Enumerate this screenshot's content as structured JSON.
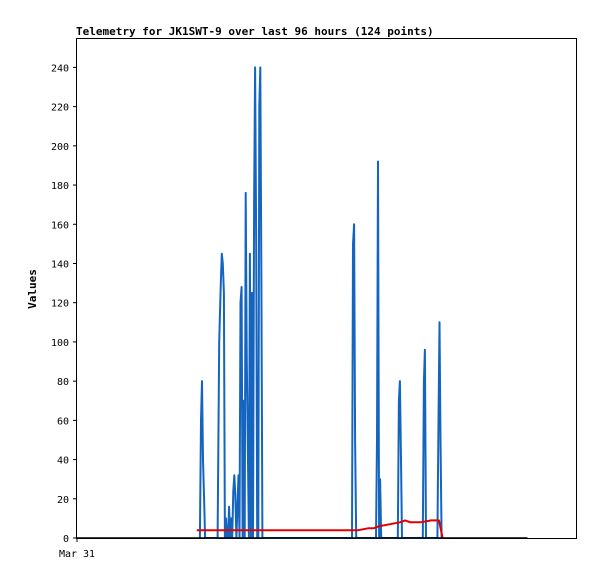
{
  "chart_data": {
    "type": "line",
    "title": "Telemetry for JK1SWT-9 over last 96 hours (124 points)",
    "xlabel": "",
    "ylabel": "Values",
    "ylim": [
      0,
      255
    ],
    "xlim": [
      0,
      96
    ],
    "y_ticks": [
      0,
      20,
      40,
      60,
      80,
      100,
      120,
      140,
      160,
      180,
      200,
      220,
      240
    ],
    "x_ticks": [
      {
        "x": 0,
        "label": "Mar 31"
      }
    ],
    "grid": false,
    "legend": "none",
    "series": [
      {
        "color": "#1565c0",
        "x": [
          23.6,
          23.8,
          24.0,
          24.2,
          24.4,
          24.6,
          24.8,
          25.0,
          27.0,
          27.3,
          27.6,
          27.8,
          28.0,
          28.2,
          28.4,
          28.6,
          28.8,
          29.0,
          29.2,
          29.4,
          29.6,
          29.8,
          30.0,
          30.2,
          30.4,
          30.6,
          31.0,
          31.2,
          31.4,
          31.6,
          31.8,
          32.0,
          32.2,
          32.4,
          32.6,
          33.0,
          33.2,
          33.4,
          33.6,
          33.8,
          34.0,
          34.2,
          34.4,
          34.6,
          34.8,
          35.0,
          35.2,
          35.4,
          35.6,
          35.8,
          36.0,
          36.2,
          36.4,
          36.6,
          36.8,
          37.0,
          37.2,
          37.4,
          37.6,
          37.8,
          38.0,
          38.2,
          38.4,
          38.6,
          38.8,
          39.0,
          52.8,
          53.0,
          53.2,
          53.4,
          53.6,
          53.8,
          57.4,
          57.6,
          57.8,
          58.0,
          58.2,
          58.4,
          58.6,
          58.8,
          61.6,
          61.8,
          62.0,
          62.2,
          62.4,
          62.6,
          66.4,
          66.6,
          66.8,
          67.0,
          67.2,
          67.4,
          69.2,
          69.4,
          69.6,
          69.8,
          70.0,
          70.2,
          70.4
        ],
        "y": [
          0,
          60,
          80,
          40,
          20,
          0,
          0,
          0,
          0,
          100,
          130,
          145,
          140,
          125,
          0,
          10,
          0,
          0,
          16,
          0,
          10,
          0,
          24,
          32,
          22,
          0,
          32,
          0,
          120,
          128,
          0,
          70,
          0,
          176,
          90,
          0,
          145,
          0,
          125,
          0,
          170,
          240,
          150,
          0,
          0,
          220,
          240,
          130,
          0,
          0,
          0,
          0,
          0,
          0,
          0,
          0,
          0,
          0,
          0,
          0,
          0,
          0,
          0,
          0,
          0,
          0,
          0,
          150,
          160,
          50,
          0,
          0,
          0,
          50,
          192,
          0,
          30,
          0,
          0,
          0,
          0,
          70,
          80,
          40,
          0,
          0,
          0,
          80,
          96,
          0,
          0,
          0,
          0,
          60,
          110,
          50,
          0,
          0,
          0
        ]
      },
      {
        "color": "#e00000",
        "x": [
          23.0,
          26.0,
          30.0,
          34.0,
          38.0,
          42.0,
          46.0,
          50.0,
          52.0,
          54.0,
          56.0,
          57.0,
          58.0,
          60.0,
          62.0,
          63.0,
          64.0,
          66.0,
          68.0,
          69.0,
          69.5,
          70.2
        ],
        "y": [
          4,
          4,
          4,
          4,
          4,
          4,
          4,
          4,
          4,
          4,
          5,
          5,
          6,
          7,
          8,
          9,
          8,
          8,
          9,
          9,
          9,
          0
        ]
      },
      {
        "color": "#000000",
        "x": [
          0,
          86.5
        ],
        "y": [
          0,
          0
        ]
      }
    ]
  }
}
